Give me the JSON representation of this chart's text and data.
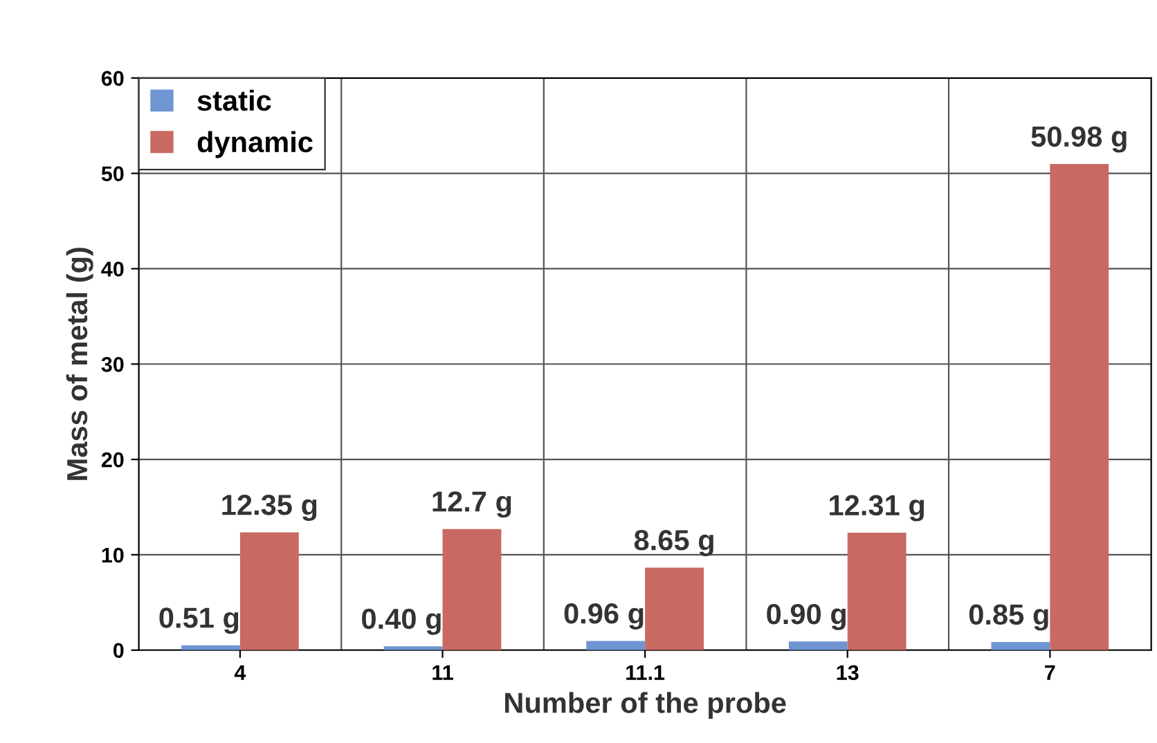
{
  "chart_data": {
    "type": "bar",
    "xlabel": "Number of the probe",
    "ylabel": "Mass of metal (g)",
    "categories": [
      "4",
      "11",
      "11.1",
      "13",
      "7"
    ],
    "series": [
      {
        "name": "static",
        "color": "#6f96d2",
        "values": [
          0.51,
          0.4,
          0.96,
          0.9,
          0.85
        ],
        "value_labels": [
          "0.51 g",
          "0.40 g",
          "0.96 g",
          "0.90 g",
          "0.85 g"
        ]
      },
      {
        "name": "dynamic",
        "color": "#c96a62",
        "values": [
          12.35,
          12.7,
          8.65,
          12.31,
          50.98
        ],
        "value_labels": [
          "12.35 g",
          "12.7 g",
          "8.65 g",
          "12.31 g",
          "50.98 g"
        ]
      }
    ],
    "ylim": [
      0,
      60
    ],
    "yticks": [
      0,
      10,
      20,
      30,
      40,
      50,
      60
    ],
    "grid": true,
    "legend": "top left"
  }
}
